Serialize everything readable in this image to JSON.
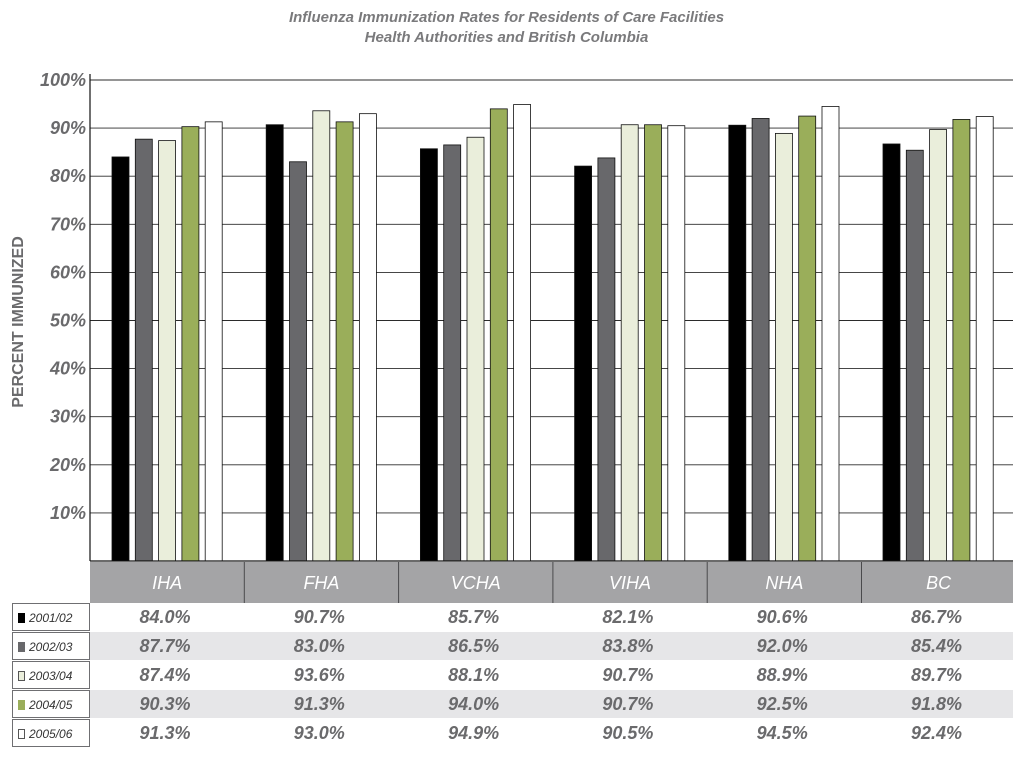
{
  "chart_data": {
    "type": "bar",
    "title": "Influenza Immunization Rates for Residents of Care Facilities",
    "subtitle": "Health Authorities and British Columbia",
    "ylabel": "PERCENT IMMUNIZED",
    "ylim": [
      0,
      100
    ],
    "yticks": [
      "10%",
      "20%",
      "30%",
      "40%",
      "50%",
      "60%",
      "70%",
      "80%",
      "90%",
      "100%"
    ],
    "grid": true,
    "categories": [
      "IHA",
      "FHA",
      "VCHA",
      "VIHA",
      "NHA",
      "BC"
    ],
    "series": [
      {
        "name": "2001/02",
        "color": "#000000",
        "values": [
          84.0,
          90.7,
          85.7,
          82.1,
          90.6,
          86.7
        ]
      },
      {
        "name": "2002/03",
        "color": "#68686b",
        "values": [
          87.7,
          83.0,
          86.5,
          83.8,
          92.0,
          85.4
        ]
      },
      {
        "name": "2003/04",
        "color": "#eaeedb",
        "values": [
          87.4,
          93.6,
          88.1,
          90.7,
          88.9,
          89.7
        ]
      },
      {
        "name": "2004/05",
        "color": "#9aae5a",
        "values": [
          90.3,
          91.3,
          94.0,
          90.7,
          92.5,
          91.8
        ]
      },
      {
        "name": "2005/06",
        "color": "#ffffff",
        "values": [
          91.3,
          93.0,
          94.9,
          90.5,
          94.5,
          92.4
        ]
      }
    ],
    "table": {
      "rows": [
        {
          "year": "2001/02",
          "cells": [
            "84.0%",
            "90.7%",
            "85.7%",
            "82.1%",
            "90.6%",
            "86.7%"
          ]
        },
        {
          "year": "2002/03",
          "cells": [
            "87.7%",
            "83.0%",
            "86.5%",
            "83.8%",
            "92.0%",
            "85.4%"
          ]
        },
        {
          "year": "2003/04",
          "cells": [
            "87.4%",
            "93.6%",
            "88.1%",
            "90.7%",
            "88.9%",
            "89.7%"
          ]
        },
        {
          "year": "2004/05",
          "cells": [
            "90.3%",
            "91.3%",
            "94.0%",
            "90.7%",
            "92.5%",
            "91.8%"
          ]
        },
        {
          "year": "2005/06",
          "cells": [
            "91.3%",
            "93.0%",
            "94.9%",
            "90.5%",
            "94.5%",
            "92.4%"
          ]
        }
      ]
    }
  }
}
